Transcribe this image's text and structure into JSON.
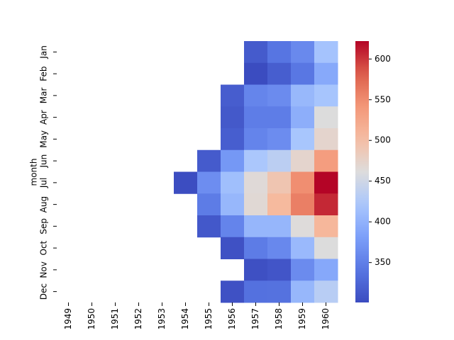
{
  "chart_data": {
    "type": "heatmap",
    "ylabel": "month",
    "x": [
      "1949",
      "1950",
      "1951",
      "1952",
      "1953",
      "1954",
      "1955",
      "1956",
      "1957",
      "1958",
      "1959",
      "1960"
    ],
    "categories": [
      "Jan",
      "Feb",
      "Mar",
      "Apr",
      "May",
      "Jun",
      "Jul",
      "Aug",
      "Sep",
      "Oct",
      "Nov",
      "Dec"
    ],
    "values": [
      [
        null,
        null,
        null,
        null,
        null,
        null,
        null,
        null,
        315,
        340,
        360,
        417
      ],
      [
        null,
        null,
        null,
        null,
        null,
        null,
        null,
        null,
        301,
        318,
        342,
        391
      ],
      [
        null,
        null,
        null,
        null,
        null,
        null,
        null,
        317,
        356,
        362,
        406,
        419
      ],
      [
        null,
        null,
        null,
        null,
        null,
        null,
        null,
        313,
        348,
        348,
        396,
        461
      ],
      [
        null,
        null,
        null,
        null,
        null,
        null,
        null,
        318,
        355,
        363,
        420,
        472
      ],
      [
        null,
        null,
        null,
        null,
        null,
        null,
        315,
        374,
        422,
        435,
        472,
        535
      ],
      [
        null,
        null,
        null,
        null,
        null,
        302,
        364,
        413,
        465,
        491,
        548,
        622
      ],
      [
        null,
        null,
        null,
        null,
        null,
        null,
        347,
        405,
        467,
        505,
        559,
        606
      ],
      [
        null,
        null,
        null,
        null,
        null,
        null,
        312,
        355,
        404,
        404,
        463,
        508
      ],
      [
        null,
        null,
        null,
        null,
        null,
        null,
        null,
        306,
        347,
        359,
        407,
        461
      ],
      [
        null,
        null,
        null,
        null,
        null,
        null,
        null,
        null,
        305,
        310,
        362,
        390
      ],
      [
        null,
        null,
        null,
        null,
        null,
        null,
        null,
        306,
        336,
        337,
        405,
        432
      ]
    ],
    "colormap": "coolwarm",
    "clim": [
      301,
      622
    ],
    "cticks": [
      350,
      400,
      450,
      500,
      550,
      600
    ]
  }
}
